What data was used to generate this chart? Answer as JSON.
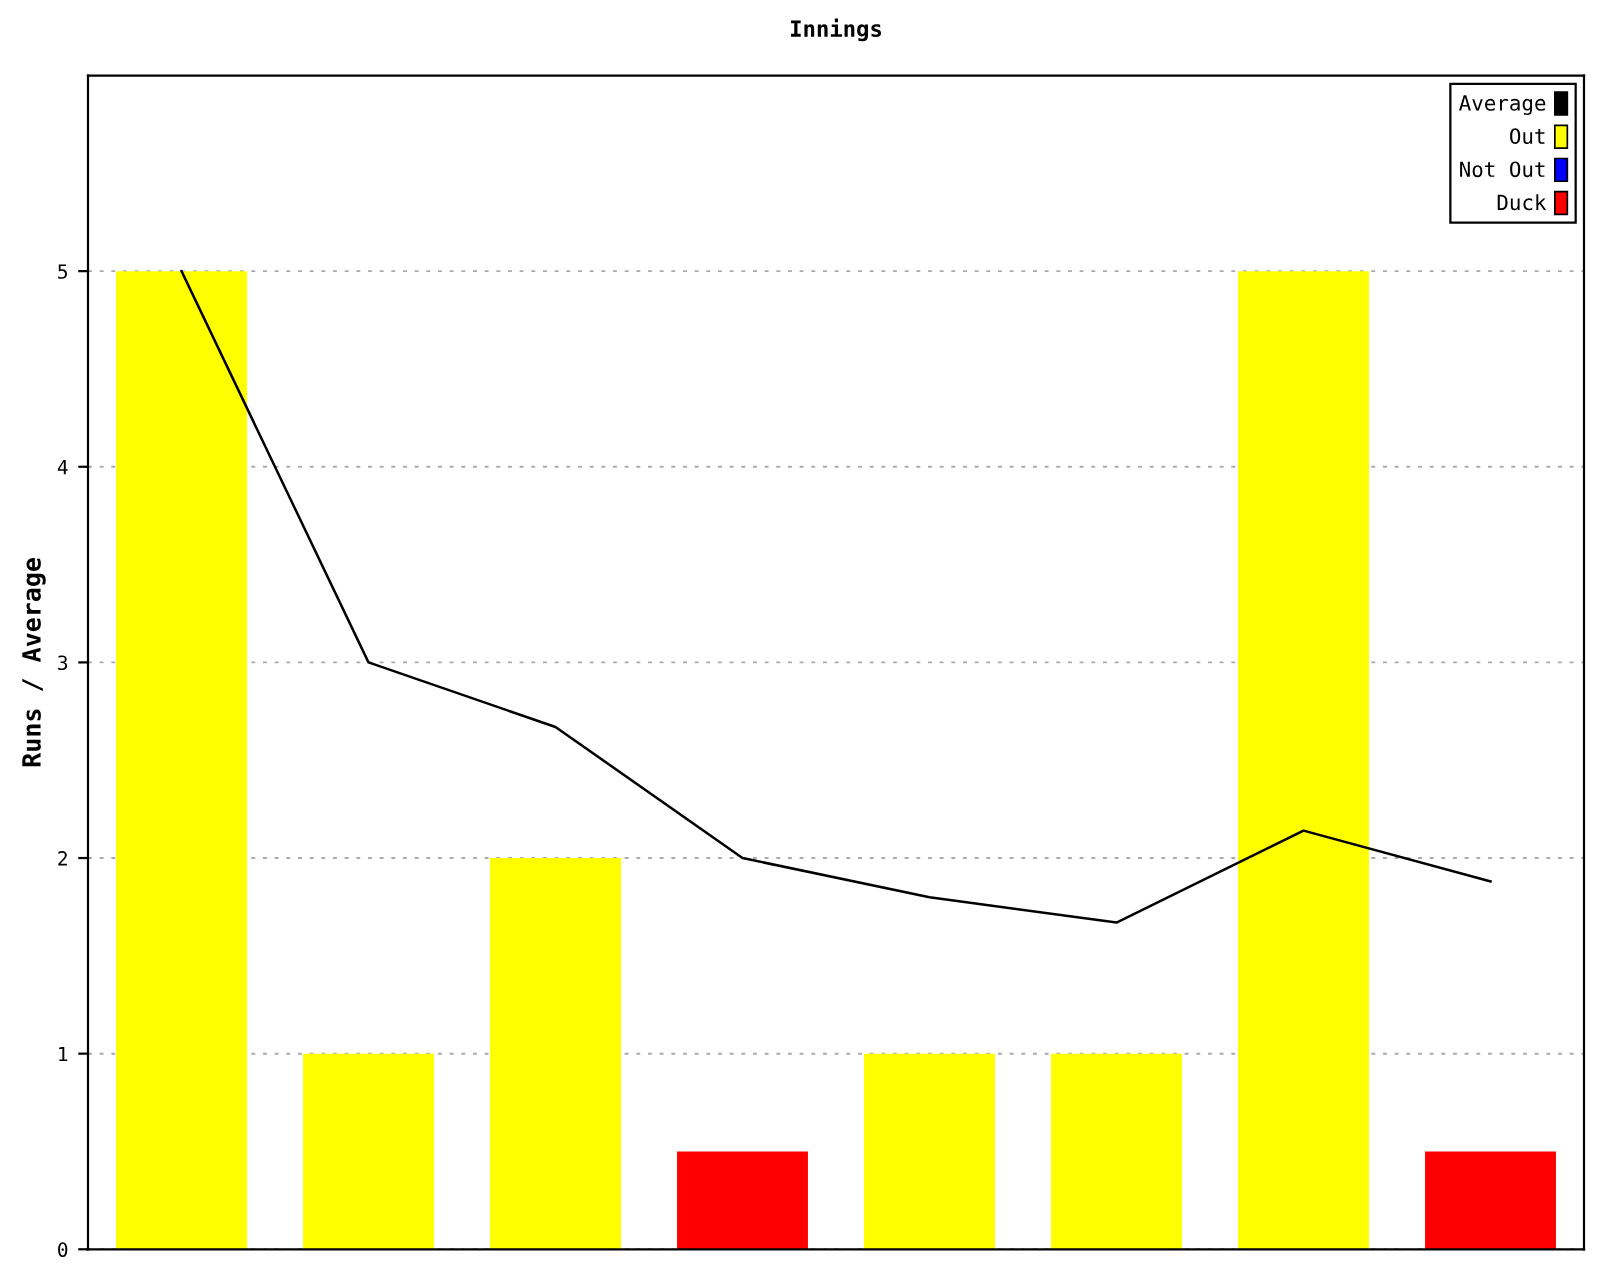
{
  "chart_data": {
    "type": "bar",
    "title": "Innings",
    "ylabel": "Runs / Average",
    "categories": [
      null,
      null,
      null,
      null,
      null,
      null,
      null,
      null
    ],
    "series": [
      {
        "name": "Average",
        "type": "line",
        "color": "#000000",
        "values": [
          5,
          3,
          2.67,
          2,
          1.8,
          1.67,
          2.14,
          1.88
        ]
      },
      {
        "name": "Out",
        "color": "#ffff00",
        "values": [
          5,
          1,
          2,
          null,
          1,
          1,
          5,
          null
        ]
      },
      {
        "name": "Not Out",
        "color": "#0000ff",
        "values": [
          null,
          null,
          null,
          null,
          null,
          null,
          null,
          null
        ]
      },
      {
        "name": "Duck",
        "color": "#ff0000",
        "values": [
          null,
          null,
          null,
          0.5,
          null,
          null,
          null,
          0.5
        ]
      }
    ],
    "ylim": [
      0,
      6
    ],
    "yticks": [
      0,
      1,
      2,
      3,
      4,
      5
    ],
    "grid": "y",
    "legend": "top right",
    "marker": "none",
    "line_style": "solid"
  }
}
